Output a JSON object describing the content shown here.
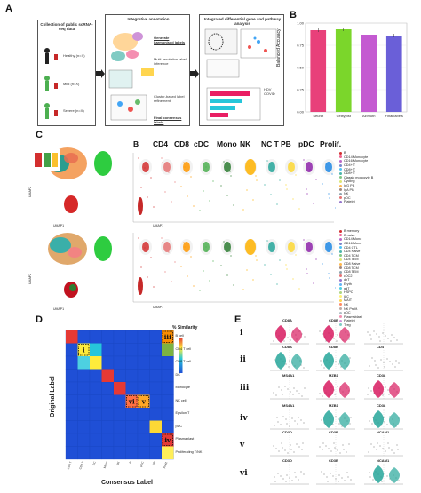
{
  "panels": {
    "A": "A",
    "B": "B",
    "C": "C",
    "D": "D",
    "E": "E"
  },
  "panelA": {
    "box1_title": "Collection of public scRNA-seq data",
    "box2_title": "Integrative annotation",
    "box3_title": "Integrated differential gene and pathway analysis",
    "cohort_texts": [
      "Healthy (n=X)",
      "Mild (n=X)",
      "Severe (n=X)"
    ],
    "mid_labels": [
      "Generate harmonised labels",
      "Multi-resolution label inference",
      "Cluster-based label refinement",
      "Final consensus labels"
    ],
    "legend_items": [
      "HDV",
      "COVID"
    ]
  },
  "panelB": {
    "ylabel": "Balanced Accuracy",
    "categories": [
      "Seurat",
      "Celltypist",
      "Azimuth",
      "Final labels"
    ],
    "colors": [
      "#e8407a",
      "#7bd62b",
      "#c45ad1",
      "#6a5fd8"
    ]
  },
  "chart_data": {
    "type": "bar",
    "categories": [
      "Seurat",
      "Celltypist",
      "Azimuth",
      "Final labels"
    ],
    "values": [
      0.92,
      0.93,
      0.87,
      0.86
    ],
    "ylim": [
      0,
      1.0
    ],
    "ylabel": "Balanced Accuracy",
    "xlabel": ""
  },
  "panelC": {
    "column_titles": [
      "B",
      "CD4",
      "CD8",
      "cDC",
      "Mono",
      "NK",
      "NC T",
      "PB",
      "pDC",
      "Prolif."
    ],
    "legend1": [
      "B",
      "CD14 Monocyte",
      "CD16 Monocyte",
      "CD4+ T",
      "CD8+ T",
      "CD8+ T",
      "Classic monocyte B",
      "Cycling",
      "IgG PB",
      "IgA PB",
      "NK",
      "pDC",
      "Platelet"
    ],
    "legend2": [
      "B memory",
      "B naive",
      "CD14 Mono",
      "CD16 Mono",
      "CD4 CTL",
      "CD4 Naive",
      "CD4 TCM",
      "CD4 TEM",
      "CD8 Naive",
      "CD8 TCM",
      "CD8 TEM",
      "cDC2",
      "dnT",
      "Eryth",
      "gdT",
      "HSPC",
      "ILC",
      "MAIT",
      "NK",
      "NK Prolif.",
      "pDC",
      "Plasmablast",
      "Platelet",
      "Treg"
    ],
    "axis_x": "UMAP1",
    "axis_y": "UMAP2"
  },
  "panelD": {
    "xlabel": "Consensus Label",
    "ylabel": "Original Label",
    "legend_title": "% Similarity",
    "row_labels": [
      "B cell",
      "CD4 T cell",
      "CD8 T cell",
      "DC",
      "Monocyte",
      "NK cell",
      "Epsilon T",
      "pDC",
      "Plasmablast",
      "Proliferating T/NK"
    ],
    "col_labels": [
      "CD4 T",
      "CD8 T",
      "DC",
      "Mono",
      "NK",
      "B",
      "pDC",
      "PB",
      "Prolif."
    ],
    "callouts": [
      "i",
      "ii",
      "iii",
      "iv",
      "v",
      "vi"
    ]
  },
  "panelE": {
    "row_labels": [
      "i",
      "ii",
      "iii",
      "iv",
      "v",
      "vi"
    ],
    "genes": [
      [
        "CD8A",
        "CD8B",
        ""
      ],
      [
        "CD8A",
        "CD8B",
        "CD4"
      ],
      [
        "MS4A1",
        "MZB1",
        "CD38"
      ],
      [
        "MS4A1",
        "MZB1",
        "CD38"
      ],
      [
        "CD3D",
        "CD3E",
        "NCAM1"
      ],
      [
        "CD3D",
        "CD3E",
        "NCAM1"
      ]
    ]
  }
}
